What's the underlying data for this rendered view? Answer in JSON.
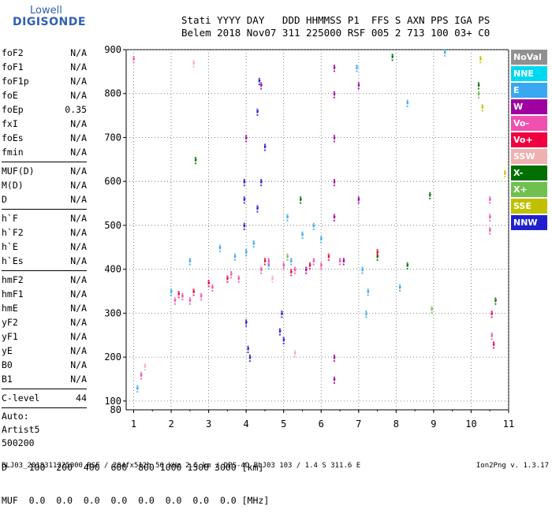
{
  "logo": {
    "line1": "Lowell",
    "line2": "DIGISONDE"
  },
  "header": {
    "line1": "Stati YYYY DAY   DDD HHMMSS P1  FFS S AXN PPS IGA PS",
    "line2": "Belem 2018 Nov07 311 225000 RSF 005 2 713 100 03+ C0"
  },
  "params": [
    {
      "k": "foF2",
      "v": "N/A"
    },
    {
      "k": "foF1",
      "v": "N/A"
    },
    {
      "k": "foF1p",
      "v": "N/A"
    },
    {
      "k": "foE",
      "v": "N/A"
    },
    {
      "k": "foEp",
      "v": "0.35"
    },
    {
      "k": "fxI",
      "v": "N/A"
    },
    {
      "k": "foEs",
      "v": "N/A"
    },
    {
      "k": "fmin",
      "v": "N/A"
    }
  ],
  "params2": [
    {
      "k": "MUF(D)",
      "v": "N/A"
    },
    {
      "k": "M(D)",
      "v": "N/A"
    },
    {
      "k": "D",
      "v": "N/A"
    }
  ],
  "params3": [
    {
      "k": "h`F",
      "v": "N/A"
    },
    {
      "k": "h`F2",
      "v": "N/A"
    },
    {
      "k": "h`E",
      "v": "N/A"
    },
    {
      "k": "h`Es",
      "v": "N/A"
    }
  ],
  "params4": [
    {
      "k": "hmF2",
      "v": "N/A"
    },
    {
      "k": "hmF1",
      "v": "N/A"
    },
    {
      "k": "hmE",
      "v": "N/A"
    },
    {
      "k": "yF2",
      "v": "N/A"
    },
    {
      "k": "yF1",
      "v": "N/A"
    },
    {
      "k": "yE",
      "v": "N/A"
    },
    {
      "k": "B0",
      "v": "N/A"
    },
    {
      "k": "B1",
      "v": "N/A"
    }
  ],
  "clevel": {
    "k": "C-level",
    "v": "44"
  },
  "auto": [
    "Auto:",
    "Artist5",
    "500200"
  ],
  "dtable": {
    "row1": "D    100  200  400  600  800 1000 1500 3000 [km]",
    "row2": "MUF  0.0  0.0  0.0  0.0  0.0  0.0  0.0  0.0 [MHz]"
  },
  "footer": {
    "left": "BLJ03_2018311225000.RSF / 204fx512h 50 kHz 2.5 km / DPS-4D BLJ03 103 / 1.4 S 311.6 E",
    "right": "Ion2Png v. 1.3.17"
  },
  "legend": [
    {
      "label": "NoVal",
      "color": "#909090"
    },
    {
      "label": "NNE",
      "color": "#00d8f0"
    },
    {
      "label": "E",
      "color": "#3aa8f0"
    },
    {
      "label": "W",
      "color": "#a000a0"
    },
    {
      "label": "Vo-",
      "color": "#f050b0"
    },
    {
      "label": "Vo+",
      "color": "#f00040"
    },
    {
      "label": "SSW",
      "color": "#f0b0b0"
    },
    {
      "label": "X-",
      "color": "#007000"
    },
    {
      "label": "X+",
      "color": "#70c050"
    },
    {
      "label": "SSE",
      "color": "#c0c000"
    },
    {
      "label": "NNW",
      "color": "#2020d0"
    }
  ],
  "chart_data": {
    "type": "scatter",
    "xlim": [
      0.8,
      11.0
    ],
    "ylim": [
      80,
      900
    ],
    "xticks": [
      "1",
      "2",
      "3",
      "4",
      "5",
      "6",
      "7",
      "8",
      "9",
      "10",
      "11"
    ],
    "yticks": [
      "100",
      "200",
      "300",
      "400",
      "500",
      "600",
      "700",
      "800",
      "900"
    ],
    "y_bottom_label": "80",
    "grid": "dotted",
    "legend_position": "right",
    "series": [
      {
        "name": "W",
        "color": "#a000a0",
        "points": [
          [
            6.35,
            860
          ],
          [
            6.35,
            800
          ],
          [
            6.35,
            700
          ],
          [
            6.35,
            600
          ],
          [
            6.35,
            520
          ],
          [
            6.35,
            200
          ],
          [
            6.35,
            150
          ],
          [
            7.0,
            820
          ],
          [
            7.0,
            560
          ],
          [
            4.0,
            700
          ],
          [
            4.4,
            820
          ],
          [
            5.6,
            400
          ],
          [
            6.6,
            420
          ]
        ]
      },
      {
        "name": "NNW",
        "color": "#2020d0",
        "points": [
          [
            3.95,
            600
          ],
          [
            3.95,
            560
          ],
          [
            3.95,
            500
          ],
          [
            4.0,
            280
          ],
          [
            4.05,
            220
          ],
          [
            4.1,
            200
          ],
          [
            4.3,
            540
          ],
          [
            4.4,
            600
          ],
          [
            4.5,
            680
          ],
          [
            4.3,
            760
          ],
          [
            4.35,
            830
          ],
          [
            4.95,
            300
          ],
          [
            4.9,
            260
          ],
          [
            5.0,
            240
          ]
        ]
      },
      {
        "name": "E",
        "color": "#3aa8f0",
        "points": [
          [
            2.0,
            350
          ],
          [
            2.5,
            420
          ],
          [
            3.3,
            450
          ],
          [
            3.7,
            430
          ],
          [
            4.0,
            440
          ],
          [
            4.2,
            460
          ],
          [
            5.1,
            520
          ],
          [
            5.5,
            480
          ],
          [
            5.8,
            500
          ],
          [
            6.0,
            470
          ],
          [
            7.1,
            400
          ],
          [
            7.2,
            300
          ],
          [
            7.25,
            350
          ],
          [
            8.1,
            360
          ],
          [
            8.3,
            780
          ],
          [
            1.1,
            130
          ],
          [
            9.3,
            895
          ],
          [
            6.95,
            860
          ],
          [
            5.2,
            420
          ],
          [
            4.6,
            410
          ]
        ]
      },
      {
        "name": "Vo-",
        "color": "#f050b0",
        "points": [
          [
            2.1,
            330
          ],
          [
            2.3,
            340
          ],
          [
            2.5,
            330
          ],
          [
            2.8,
            340
          ],
          [
            3.1,
            360
          ],
          [
            3.6,
            390
          ],
          [
            3.8,
            380
          ],
          [
            4.4,
            400
          ],
          [
            4.6,
            420
          ],
          [
            5.0,
            410
          ],
          [
            5.3,
            400
          ],
          [
            5.8,
            420
          ],
          [
            6.0,
            410
          ],
          [
            6.5,
            420
          ],
          [
            10.5,
            560
          ],
          [
            10.5,
            520
          ],
          [
            10.5,
            490
          ],
          [
            10.55,
            250
          ],
          [
            1.2,
            160
          ],
          [
            1.0,
            880
          ]
        ]
      },
      {
        "name": "Vo+",
        "color": "#f00040",
        "points": [
          [
            2.2,
            345
          ],
          [
            2.6,
            350
          ],
          [
            3.0,
            370
          ],
          [
            3.5,
            380
          ],
          [
            4.5,
            420
          ],
          [
            5.2,
            395
          ],
          [
            5.7,
            410
          ],
          [
            6.2,
            430
          ],
          [
            7.5,
            440
          ],
          [
            10.55,
            300
          ],
          [
            10.6,
            230
          ]
        ]
      },
      {
        "name": "SSW",
        "color": "#f0b0b0",
        "points": [
          [
            1.3,
            180
          ],
          [
            2.6,
            870
          ],
          [
            5.3,
            210
          ],
          [
            4.7,
            380
          ]
        ]
      },
      {
        "name": "X-",
        "color": "#007000",
        "points": [
          [
            2.65,
            650
          ],
          [
            5.45,
            560
          ],
          [
            7.5,
            430
          ],
          [
            8.3,
            410
          ],
          [
            8.9,
            570
          ],
          [
            10.2,
            820
          ],
          [
            10.65,
            330
          ],
          [
            7.9,
            885
          ]
        ]
      },
      {
        "name": "X+",
        "color": "#70c050",
        "points": [
          [
            8.95,
            310
          ],
          [
            10.2,
            800
          ],
          [
            5.1,
            430
          ]
        ]
      },
      {
        "name": "SSE",
        "color": "#c0c000",
        "points": [
          [
            10.25,
            880
          ],
          [
            10.3,
            770
          ],
          [
            10.9,
            620
          ]
        ]
      }
    ]
  }
}
